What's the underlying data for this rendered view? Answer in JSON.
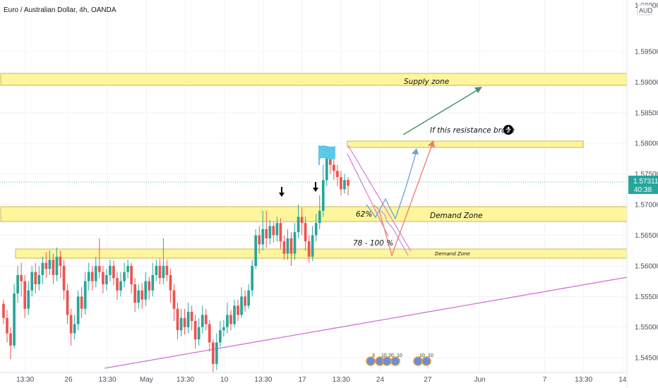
{
  "header": {
    "title": "Euro / Australian Dollar, 4h, OANDA"
  },
  "price_axis": {
    "currency_badge": "AUD",
    "top_tick": "1.60000",
    "current_price": "1.57311",
    "countdown": "40:38",
    "price_color": "#26a69a"
  },
  "annotations": {
    "supply_zone": "Supply zone",
    "demand_zone": "Demand Zone",
    "demand_zone_small": "Demand Zone",
    "resistance_note": "If this resistance broke",
    "fib_62": "62%",
    "fib_78_100": "78 - 100 %",
    "event_labels": [
      "3",
      "10",
      "20",
      "10",
      "10",
      "10"
    ]
  },
  "icons": {
    "flag": "flag-icon",
    "down_arrows": "down-arrow-icon",
    "up_circle": "up-circle-icon",
    "events": "event-icon"
  },
  "colors": {
    "up": "#26a69a",
    "down": "#ef5350",
    "zone_fill": "#fff59d",
    "trendline": "#d36fd6",
    "arrow_green": "#4e8f6e",
    "arrow_blue": "#6aa3d8",
    "arrow_red": "#ef7b6f",
    "flag": "#5bc8e8"
  },
  "chart_data": {
    "type": "candlestick",
    "instrument": "Euro / Australian Dollar",
    "timeframe": "4h",
    "source": "OANDA",
    "ylim": [
      1.5426,
      1.6034
    ],
    "y_ticks": [
      1.545,
      1.55,
      1.555,
      1.56,
      1.565,
      1.57,
      1.575,
      1.58,
      1.585,
      1.59,
      1.595
    ],
    "x_tick_labels": [
      "13:30",
      "26",
      "13:30",
      "May",
      "13:30",
      "10",
      "13:30",
      "17",
      "13:30",
      "24",
      "27",
      "Jun",
      "7",
      "13:30",
      "14"
    ],
    "x_tick_index": [
      5,
      15,
      24,
      33,
      42,
      51,
      60,
      69,
      78,
      87,
      98,
      110,
      125,
      134,
      143
    ],
    "x_range": [
      0,
      144
    ],
    "last_price": 1.57311,
    "zones": [
      {
        "label": "Supply zone",
        "from": 1.5876,
        "to": 1.5896
      },
      {
        "label": "Demand Zone",
        "from": 1.5668,
        "to": 1.5692
      },
      {
        "label": "Demand Zone",
        "from": 1.5612,
        "to": 1.5624
      },
      {
        "label": "If this resistance broke",
        "from": 1.5785,
        "to": 1.5794
      }
    ],
    "candles": [
      [
        1.5538,
        1.5515,
        1.5545,
        1.5505
      ],
      [
        1.5515,
        1.549,
        1.5528,
        1.5475
      ],
      [
        1.549,
        1.547,
        1.55,
        1.5448
      ],
      [
        1.547,
        1.5555,
        1.557,
        1.5465
      ],
      [
        1.5555,
        1.5585,
        1.56,
        1.554
      ],
      [
        1.5585,
        1.5575,
        1.5605,
        1.555
      ],
      [
        1.5575,
        1.553,
        1.5585,
        1.5515
      ],
      [
        1.553,
        1.556,
        1.5575,
        1.552
      ],
      [
        1.556,
        1.559,
        1.56,
        1.555
      ],
      [
        1.559,
        1.557,
        1.5605,
        1.5555
      ],
      [
        1.557,
        1.5585,
        1.56,
        1.556
      ],
      [
        1.5585,
        1.5605,
        1.5615,
        1.557
      ],
      [
        1.5605,
        1.5595,
        1.5622,
        1.558
      ],
      [
        1.5595,
        1.561,
        1.5625,
        1.5585
      ],
      [
        1.561,
        1.5585,
        1.562,
        1.557
      ],
      [
        1.5585,
        1.5615,
        1.563,
        1.5575
      ],
      [
        1.5615,
        1.56,
        1.5625,
        1.558
      ],
      [
        1.56,
        1.556,
        1.561,
        1.5545
      ],
      [
        1.556,
        1.552,
        1.557,
        1.5505
      ],
      [
        1.552,
        1.549,
        1.553,
        1.547
      ],
      [
        1.549,
        1.5505,
        1.552,
        1.548
      ],
      [
        1.5505,
        1.555,
        1.556,
        1.5495
      ],
      [
        1.555,
        1.553,
        1.5565,
        1.5515
      ],
      [
        1.553,
        1.5575,
        1.559,
        1.552
      ],
      [
        1.5575,
        1.559,
        1.5605,
        1.556
      ],
      [
        1.559,
        1.5575,
        1.56,
        1.556
      ],
      [
        1.5575,
        1.56,
        1.5615,
        1.5565
      ],
      [
        1.56,
        1.559,
        1.5645,
        1.558
      ],
      [
        1.559,
        1.557,
        1.56,
        1.5555
      ],
      [
        1.557,
        1.5585,
        1.5595,
        1.556
      ],
      [
        1.5585,
        1.56,
        1.561,
        1.5575
      ],
      [
        1.56,
        1.558,
        1.5608,
        1.5568
      ],
      [
        1.558,
        1.556,
        1.559,
        1.5545
      ],
      [
        1.556,
        1.5575,
        1.559,
        1.555
      ],
      [
        1.5575,
        1.559,
        1.5605,
        1.5565
      ],
      [
        1.559,
        1.56,
        1.561,
        1.558
      ],
      [
        1.56,
        1.557,
        1.5605,
        1.5555
      ],
      [
        1.557,
        1.554,
        1.558,
        1.5525
      ],
      [
        1.554,
        1.556,
        1.557,
        1.553
      ],
      [
        1.556,
        1.5545,
        1.5572,
        1.553
      ],
      [
        1.5545,
        1.5575,
        1.559,
        1.5535
      ],
      [
        1.5575,
        1.556,
        1.5582,
        1.5545
      ],
      [
        1.556,
        1.5585,
        1.5605,
        1.555
      ],
      [
        1.5585,
        1.56,
        1.561,
        1.5575
      ],
      [
        1.56,
        1.558,
        1.5612,
        1.557
      ],
      [
        1.558,
        1.56,
        1.5645,
        1.557
      ],
      [
        1.56,
        1.5585,
        1.561,
        1.5575
      ],
      [
        1.5585,
        1.556,
        1.5595,
        1.554
      ],
      [
        1.556,
        1.553,
        1.557,
        1.551
      ],
      [
        1.553,
        1.5495,
        1.554,
        1.548
      ],
      [
        1.5495,
        1.5515,
        1.553,
        1.5485
      ],
      [
        1.5515,
        1.55,
        1.553,
        1.5488
      ],
      [
        1.55,
        1.5525,
        1.554,
        1.549
      ],
      [
        1.5525,
        1.551,
        1.5535,
        1.5495
      ],
      [
        1.551,
        1.548,
        1.552,
        1.5465
      ],
      [
        1.548,
        1.55,
        1.5515,
        1.547
      ],
      [
        1.55,
        1.552,
        1.5535,
        1.549
      ],
      [
        1.552,
        1.5505,
        1.553,
        1.5495
      ],
      [
        1.5505,
        1.5475,
        1.5512,
        1.546
      ],
      [
        1.5475,
        1.544,
        1.548,
        1.5425
      ],
      [
        1.544,
        1.5475,
        1.549,
        1.543
      ],
      [
        1.5475,
        1.5495,
        1.551,
        1.5468
      ],
      [
        1.5495,
        1.55,
        1.5512,
        1.5485
      ],
      [
        1.55,
        1.552,
        1.554,
        1.549
      ],
      [
        1.552,
        1.5505,
        1.5528,
        1.5495
      ],
      [
        1.5505,
        1.5535,
        1.5545,
        1.55
      ],
      [
        1.5535,
        1.552,
        1.5545,
        1.551
      ],
      [
        1.552,
        1.555,
        1.5565,
        1.5515
      ],
      [
        1.555,
        1.5535,
        1.556,
        1.5525
      ],
      [
        1.5535,
        1.556,
        1.557,
        1.553
      ],
      [
        1.556,
        1.56,
        1.561,
        1.555
      ],
      [
        1.56,
        1.565,
        1.566,
        1.5595
      ],
      [
        1.565,
        1.5635,
        1.5665,
        1.562
      ],
      [
        1.5635,
        1.566,
        1.569,
        1.5625
      ],
      [
        1.566,
        1.5645,
        1.569,
        1.563
      ],
      [
        1.5645,
        1.5665,
        1.5675,
        1.5635
      ],
      [
        1.5665,
        1.565,
        1.5672,
        1.5638
      ],
      [
        1.565,
        1.567,
        1.568,
        1.564
      ],
      [
        1.567,
        1.564,
        1.5678,
        1.5628
      ],
      [
        1.564,
        1.562,
        1.565,
        1.561
      ],
      [
        1.562,
        1.5645,
        1.566,
        1.561
      ],
      [
        1.5645,
        1.562,
        1.5655,
        1.56
      ],
      [
        1.562,
        1.5655,
        1.567,
        1.561
      ],
      [
        1.5655,
        1.568,
        1.57,
        1.5645
      ],
      [
        1.568,
        1.567,
        1.5695,
        1.565
      ],
      [
        1.567,
        1.564,
        1.568,
        1.5625
      ],
      [
        1.564,
        1.5615,
        1.565,
        1.5605
      ],
      [
        1.5615,
        1.565,
        1.5665,
        1.5608
      ],
      [
        1.565,
        1.567,
        1.5685,
        1.564
      ],
      [
        1.567,
        1.569,
        1.5715,
        1.566
      ],
      [
        1.569,
        1.574,
        1.5765,
        1.568
      ],
      [
        1.574,
        1.5785,
        1.5795,
        1.573
      ],
      [
        1.5785,
        1.5765,
        1.5792,
        1.575
      ],
      [
        1.5765,
        1.5755,
        1.5775,
        1.574
      ],
      [
        1.5755,
        1.5745,
        1.5765,
        1.573
      ],
      [
        1.5745,
        1.5725,
        1.5755,
        1.5715
      ],
      [
        1.5725,
        1.574,
        1.575,
        1.5718
      ],
      [
        1.574,
        1.5731,
        1.5745,
        1.5715
      ]
    ]
  }
}
